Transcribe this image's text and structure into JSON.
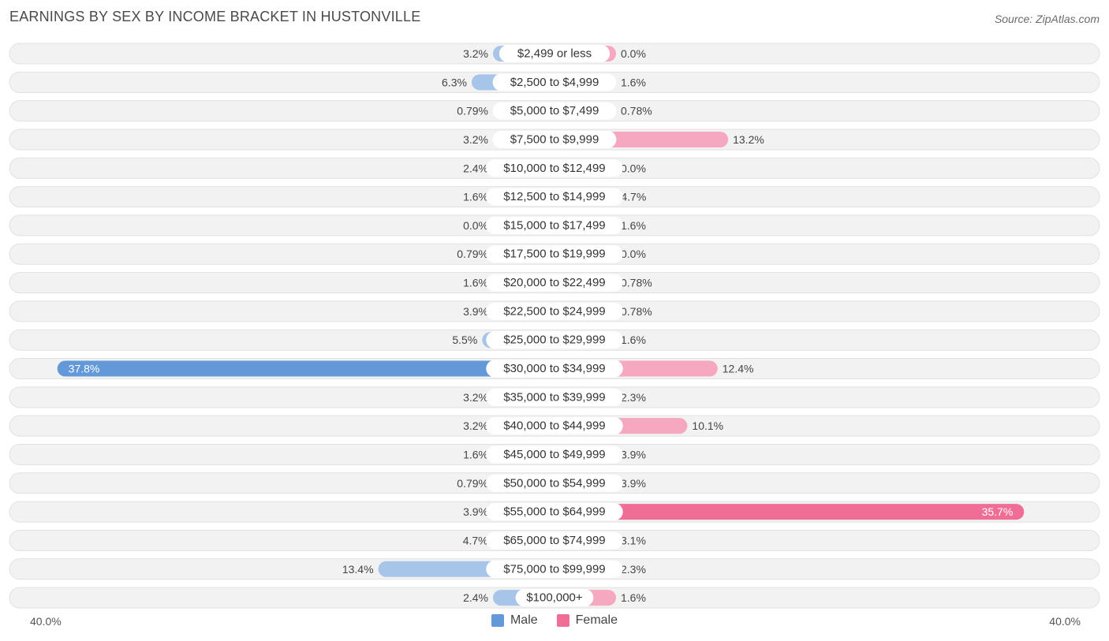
{
  "title": "EARNINGS BY SEX BY INCOME BRACKET IN HUSTONVILLE",
  "source": "Source: ZipAtlas.com",
  "colors": {
    "male": "#a7c4e9",
    "male_highlight": "#6399d8",
    "female": "#f5a8c0",
    "female_highlight": "#f06d96",
    "row_background": "#f2f2f2",
    "row_border": "#e1e1e1"
  },
  "legend": {
    "male_label": "Male",
    "female_label": "Female"
  },
  "axis": {
    "left_label": "40.0%",
    "right_label": "40.0%"
  },
  "chart_data": {
    "type": "bar",
    "orientation": "horizontal-diverging",
    "title": "EARNINGS BY SEX BY INCOME BRACKET IN HUSTONVILLE",
    "xlim": [
      -40,
      40
    ],
    "xlabel": "",
    "ylabel": "",
    "legend_position": "bottom-center",
    "categories": [
      "$2,499 or less",
      "$2,500 to $4,999",
      "$5,000 to $7,499",
      "$7,500 to $9,999",
      "$10,000 to $12,499",
      "$12,500 to $14,999",
      "$15,000 to $17,499",
      "$17,500 to $19,999",
      "$20,000 to $22,499",
      "$22,500 to $24,999",
      "$25,000 to $29,999",
      "$30,000 to $34,999",
      "$35,000 to $39,999",
      "$40,000 to $44,999",
      "$45,000 to $49,999",
      "$50,000 to $54,999",
      "$55,000 to $64,999",
      "$65,000 to $74,999",
      "$75,000 to $99,999",
      "$100,000+"
    ],
    "series": [
      {
        "name": "Male",
        "values": [
          3.2,
          6.3,
          0.79,
          3.2,
          2.4,
          1.6,
          0.0,
          0.79,
          1.6,
          3.9,
          5.5,
          37.8,
          3.2,
          3.2,
          1.6,
          0.79,
          3.9,
          4.7,
          13.4,
          2.4
        ],
        "labels": [
          "3.2%",
          "6.3%",
          "0.79%",
          "3.2%",
          "2.4%",
          "1.6%",
          "0.0%",
          "0.79%",
          "1.6%",
          "3.9%",
          "5.5%",
          "37.8%",
          "3.2%",
          "3.2%",
          "1.6%",
          "0.79%",
          "3.9%",
          "4.7%",
          "13.4%",
          "2.4%"
        ]
      },
      {
        "name": "Female",
        "values": [
          0.0,
          1.6,
          0.78,
          13.2,
          0.0,
          4.7,
          1.6,
          0.0,
          0.78,
          0.78,
          1.6,
          12.4,
          2.3,
          10.1,
          3.9,
          3.9,
          35.7,
          3.1,
          2.3,
          1.6
        ],
        "labels": [
          "0.0%",
          "1.6%",
          "0.78%",
          "13.2%",
          "0.0%",
          "4.7%",
          "1.6%",
          "0.0%",
          "0.78%",
          "0.78%",
          "1.6%",
          "12.4%",
          "2.3%",
          "10.1%",
          "3.9%",
          "3.9%",
          "35.7%",
          "3.1%",
          "2.3%",
          "1.6%"
        ]
      }
    ]
  }
}
